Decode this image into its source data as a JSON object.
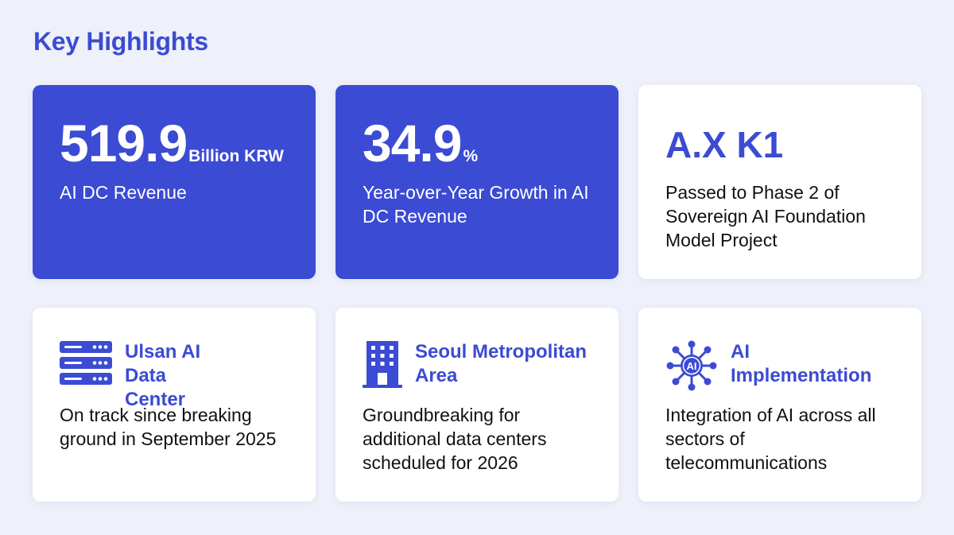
{
  "title": "Key Highlights",
  "colors": {
    "accent": "#3b4bd3",
    "background": "#eef0fa",
    "card": "#ffffff"
  },
  "cards": [
    {
      "value": "519.9",
      "unit": "Billion KRW",
      "description": "AI DC Revenue"
    },
    {
      "value": "34.9",
      "unit": "%",
      "description": "Year-over-Year Growth in AI DC Revenue"
    },
    {
      "logo_text": "A.X K1",
      "description": "Passed to Phase 2 of Sovereign AI Foundation Model Project"
    },
    {
      "icon": "server-rack-icon",
      "heading": "Ulsan AI Data Center",
      "description": "On track since breaking ground in September 2025"
    },
    {
      "icon": "office-building-icon",
      "heading": "Seoul Metropolitan Area",
      "description": "Groundbreaking for additional data centers scheduled for 2026"
    },
    {
      "icon": "ai-network-icon",
      "icon_label": "AI",
      "heading": "AI Implementation",
      "description": "Integration of AI across all sectors of telecommunications"
    }
  ]
}
